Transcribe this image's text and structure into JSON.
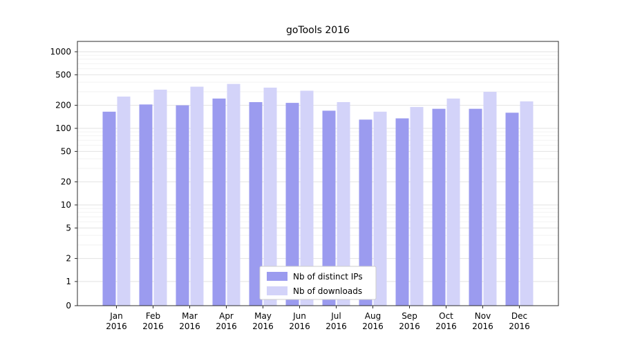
{
  "chart_data": {
    "type": "bar",
    "title": "goTools 2016",
    "categories": [
      "Jan",
      "Feb",
      "Mar",
      "Apr",
      "May",
      "Jun",
      "Jul",
      "Aug",
      "Sep",
      "Oct",
      "Nov",
      "Dec"
    ],
    "category_year": "2016",
    "series": [
      {
        "name": "Nb of distinct IPs",
        "color": "#9b9bef",
        "values": [
          165,
          205,
          200,
          245,
          220,
          215,
          170,
          130,
          135,
          180,
          180,
          160
        ]
      },
      {
        "name": "Nb of downloads",
        "color": "#d3d3f9",
        "values": [
          260,
          320,
          350,
          380,
          340,
          310,
          220,
          165,
          190,
          245,
          300,
          225
        ]
      }
    ],
    "yscale": "symlog",
    "yticks": [
      0,
      1,
      2,
      5,
      10,
      20,
      50,
      100,
      200,
      500,
      1000
    ],
    "ylim": [
      0,
      1000
    ],
    "grid": true,
    "legend_position": "lower center",
    "xlabel": "",
    "ylabel": ""
  },
  "colors": {
    "major_grid": "#e2e2e2",
    "minor_grid": "#f2f2f2",
    "spine": "#2b2b2b",
    "tick": "#2b2b2b",
    "text": "#000000",
    "legend_border": "#cccccc",
    "legend_bg": "#ffffff",
    "background": "#ffffff"
  }
}
